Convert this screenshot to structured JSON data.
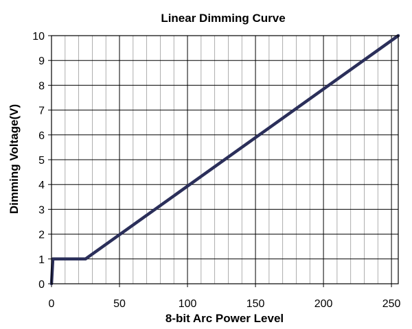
{
  "chart_data": {
    "type": "line",
    "title": "Linear Dimming Curve",
    "xlabel": "8-bit Arc Power Level",
    "ylabel": "Dimming Voltage(V)",
    "xlim": [
      0,
      255
    ],
    "ylim": [
      0,
      10
    ],
    "x_ticks": [
      0,
      50,
      100,
      150,
      200,
      250
    ],
    "y_ticks": [
      0,
      1,
      2,
      3,
      4,
      5,
      6,
      7,
      8,
      9,
      10
    ],
    "x_minor_step": 10,
    "grid": true,
    "legend": "none",
    "series": [
      {
        "x": [
          0,
          1,
          25,
          255
        ],
        "y": [
          0,
          1,
          1,
          10
        ],
        "color": "#2b2f5a"
      }
    ]
  }
}
